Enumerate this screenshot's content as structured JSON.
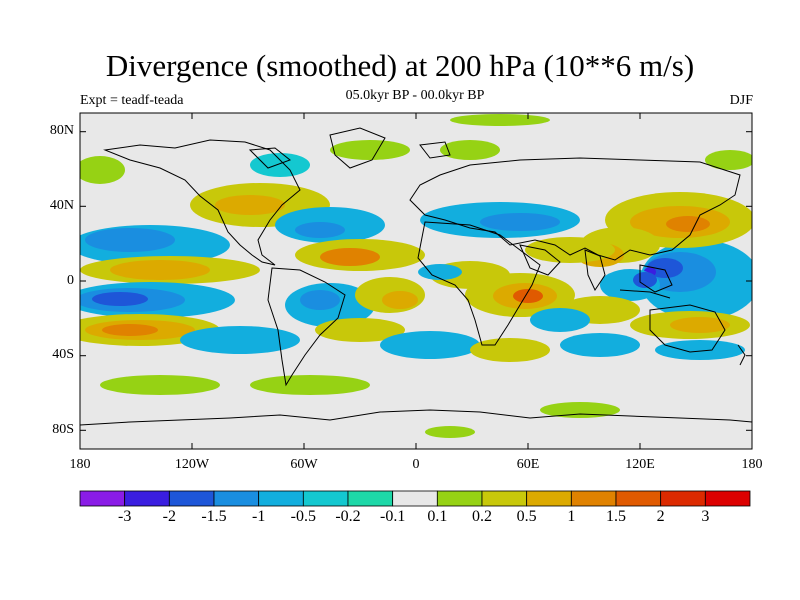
{
  "title": "Divergence (smoothed) at 200 hPa (10**6 m/s)",
  "experiment": "Expt = teadf-teada",
  "period": "05.0kyr BP - 00.0kyr BP",
  "season": "DJF",
  "y_axis_labels": [
    "80N",
    "40N",
    "0",
    "40S",
    "80S"
  ],
  "x_axis_labels": [
    "180",
    "120W",
    "60W",
    "0",
    "60E",
    "120E",
    "180"
  ],
  "colorbar": {
    "labels": [
      "-3",
      "-2",
      "-1.5",
      "-1",
      "-0.5",
      "-0.2",
      "-0.1",
      "0.1",
      "0.2",
      "0.5",
      "1",
      "1.5",
      "2",
      "3"
    ],
    "colors": [
      "#8a1ce6",
      "#3a1ee0",
      "#1e56d8",
      "#1a8ee0",
      "#12aede",
      "#14c8d0",
      "#1ed8a8",
      "#e8e8e8",
      "#96d214",
      "#c8c80a",
      "#dcaa00",
      "#e08200",
      "#e05a00",
      "#dc2a00",
      "#dc0000"
    ]
  },
  "map_data": {
    "type": "filled-contour-map",
    "projection": "cylindrical-equidistant",
    "lon_range": [
      -180,
      180
    ],
    "lat_range": [
      -90,
      90
    ],
    "variable": "200 hPa divergence difference",
    "units": "10**6 m/s"
  }
}
